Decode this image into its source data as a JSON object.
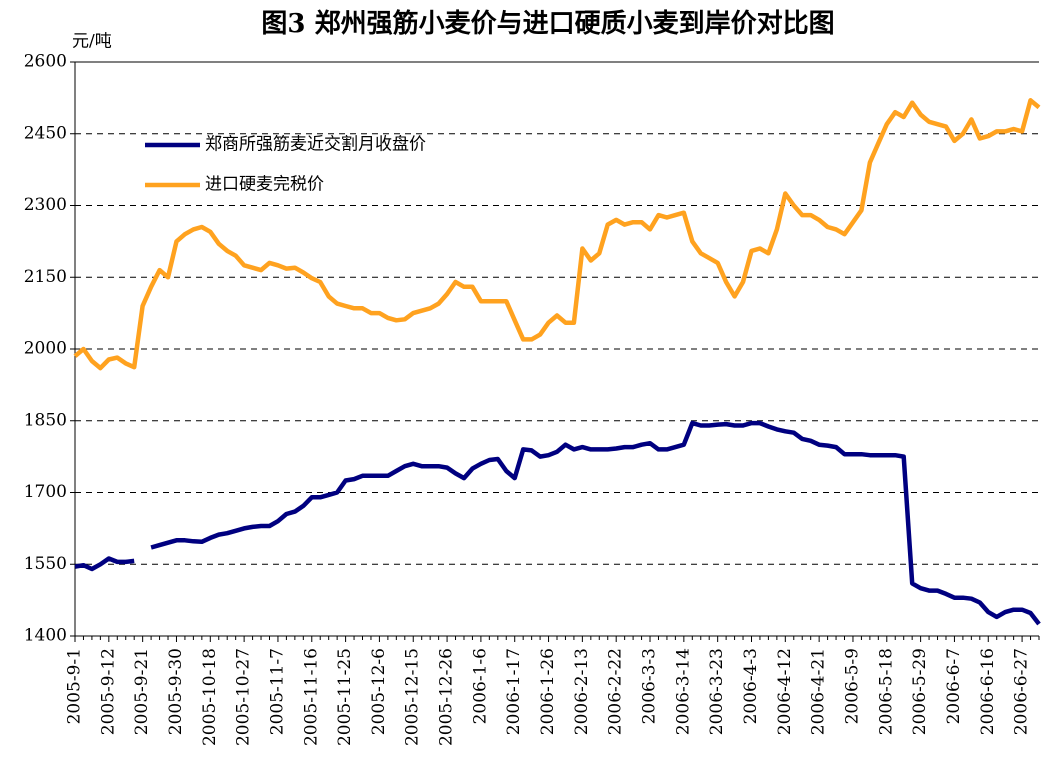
{
  "chart_data": {
    "type": "line",
    "title": "图3 郑州强筋小麦价与进口硬质小麦到岸价对比图",
    "y_label": "元/吨",
    "categories": [
      "2005-9-1",
      null,
      null,
      null,
      "2005-9-12",
      null,
      null,
      null,
      "2005-9-21",
      null,
      null,
      null,
      "2005-9-30",
      null,
      null,
      null,
      "2005-10-18",
      null,
      null,
      null,
      "2005-10-27",
      null,
      null,
      null,
      "2005-11-7",
      null,
      null,
      null,
      "2005-11-16",
      null,
      null,
      null,
      "2005-11-25",
      null,
      null,
      null,
      "2005-12-6",
      null,
      null,
      null,
      "2005-12-15",
      null,
      null,
      null,
      "2005-12-26",
      null,
      null,
      null,
      "2006-1-6",
      null,
      null,
      null,
      "2006-1-17",
      null,
      null,
      null,
      "2006-1-26",
      null,
      null,
      null,
      "2006-2-13",
      null,
      null,
      null,
      "2006-2-22",
      null,
      null,
      null,
      "2006-3-3",
      null,
      null,
      null,
      "2006-3-14",
      null,
      null,
      null,
      "2006-3-23",
      null,
      null,
      null,
      "2006-4-3",
      null,
      null,
      null,
      "2006-4-12",
      null,
      null,
      null,
      "2006-4-21",
      null,
      null,
      null,
      "2006-5-9",
      null,
      null,
      null,
      "2006-5-18",
      null,
      null,
      null,
      "2006-5-29",
      null,
      null,
      null,
      "2006-6-7",
      null,
      null,
      null,
      "2006-6-16",
      null,
      null,
      null,
      "2006-6-27",
      null,
      null
    ],
    "series": [
      {
        "name": "郑商所强筋麦近交割月收盘价",
        "color": "#000080",
        "values": [
          1545,
          1548,
          1540,
          1550,
          1562,
          1555,
          1555,
          1557,
          null,
          1585,
          1590,
          1595,
          1600,
          1600,
          1598,
          1597,
          1605,
          1612,
          1615,
          1620,
          1625,
          1628,
          1630,
          1630,
          1640,
          1655,
          1660,
          1672,
          1690,
          1690,
          1695,
          1700,
          1725,
          1728,
          1735,
          1735,
          1735,
          1735,
          1745,
          1755,
          1760,
          1755,
          1755,
          1755,
          1752,
          1740,
          1730,
          1750,
          1760,
          1768,
          1770,
          1745,
          1730,
          1790,
          1788,
          1775,
          1778,
          1785,
          1800,
          1790,
          1795,
          1790,
          1790,
          1790,
          1792,
          1795,
          1795,
          1800,
          1803,
          1790,
          1790,
          1795,
          1800,
          1845,
          1840,
          1840,
          1842,
          1843,
          1840,
          1840,
          1845,
          1845,
          1838,
          1832,
          1828,
          1825,
          1812,
          1808,
          1800,
          1798,
          1795,
          1780,
          1780,
          1780,
          1778,
          1778,
          1778,
          1778,
          1775,
          1510,
          1500,
          1495,
          1495,
          1488,
          1480,
          1480,
          1478,
          1470,
          1450,
          1440,
          1450,
          1455,
          1455,
          1448,
          1425
        ]
      },
      {
        "name": "进口硬麦完税价",
        "color": "#ffa21f",
        "values": [
          1985,
          2000,
          1975,
          1960,
          1978,
          1982,
          1970,
          1962,
          2090,
          2130,
          2165,
          2150,
          2225,
          2240,
          2250,
          2255,
          2245,
          2220,
          2205,
          2195,
          2175,
          2170,
          2165,
          2180,
          2175,
          2168,
          2170,
          2160,
          2148,
          2140,
          2110,
          2095,
          2090,
          2085,
          2085,
          2075,
          2075,
          2065,
          2060,
          2062,
          2075,
          2080,
          2085,
          2095,
          2115,
          2140,
          2130,
          2130,
          2100,
          2100,
          2100,
          2100,
          2060,
          2020,
          2020,
          2030,
          2055,
          2070,
          2055,
          2055,
          2210,
          2185,
          2200,
          2260,
          2270,
          2260,
          2265,
          2265,
          2250,
          2280,
          2275,
          2280,
          2285,
          2225,
          2200,
          2190,
          2180,
          2140,
          2110,
          2140,
          2205,
          2210,
          2200,
          2250,
          2325,
          2300,
          2280,
          2280,
          2270,
          2255,
          2250,
          2240,
          2265,
          2290,
          2390,
          2430,
          2470,
          2495,
          2485,
          2515,
          2490,
          2475,
          2470,
          2465,
          2435,
          2450,
          2480,
          2440,
          2445,
          2455,
          2455,
          2460,
          2455,
          2520,
          2505
        ]
      }
    ],
    "ylim": [
      1400,
      2600
    ],
    "yticks": [
      1400,
      1550,
      1700,
      1850,
      2000,
      2150,
      2300,
      2450,
      2600
    ],
    "grid": true,
    "legend": "upper left"
  }
}
